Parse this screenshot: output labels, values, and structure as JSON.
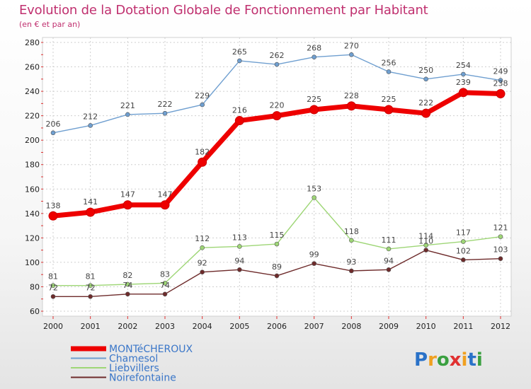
{
  "chart_data": {
    "type": "line",
    "title": "Evolution de la Dotation Globale de Fonctionnement par Habitant",
    "subtitle": "(en € et par an)",
    "x": [
      "2000",
      "2001",
      "2002",
      "2003",
      "2004",
      "2005",
      "2006",
      "2007",
      "2008",
      "2009",
      "2010",
      "2011",
      "2012"
    ],
    "ylim": [
      60,
      280
    ],
    "yticks": [
      60,
      80,
      100,
      120,
      140,
      160,
      180,
      200,
      220,
      240,
      260,
      280
    ],
    "grid": true,
    "legend_position": "bottom-left",
    "series": [
      {
        "name": "MONTéCHEROUX",
        "color": "#ee0000",
        "values": [
          138,
          141,
          147,
          147,
          182,
          216,
          220,
          225,
          228,
          225,
          222,
          239,
          238
        ]
      },
      {
        "name": "Chamesol",
        "color": "#6f9fd0",
        "values": [
          206,
          212,
          221,
          222,
          229,
          265,
          262,
          268,
          270,
          256,
          250,
          254,
          249
        ]
      },
      {
        "name": "Liebvillers",
        "color": "#9ed676",
        "values": [
          81,
          81,
          82,
          83,
          112,
          113,
          115,
          153,
          118,
          111,
          114,
          117,
          121
        ]
      },
      {
        "name": "Noirefontaine",
        "color": "#6e2b2b",
        "values": [
          72,
          72,
          74,
          74,
          92,
          94,
          89,
          99,
          93,
          94,
          110,
          102,
          103
        ]
      }
    ]
  },
  "brand": {
    "letters": [
      "P",
      "r",
      "o",
      "x",
      "i",
      "t",
      "i"
    ],
    "colors": [
      "#2a72c8",
      "#f0a020",
      "#3aa040",
      "#e03030",
      "#f0a020",
      "#2a72c8",
      "#3aa040"
    ]
  }
}
